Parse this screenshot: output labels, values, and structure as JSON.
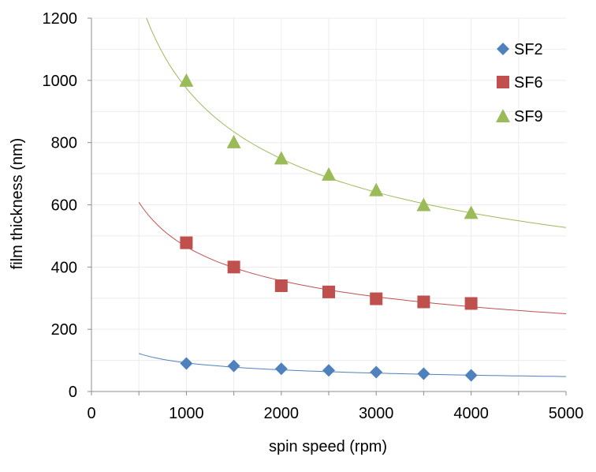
{
  "chart_data": {
    "type": "scatter",
    "title": "",
    "xlabel": "spin speed (rpm)",
    "ylabel": "film thickness (nm)",
    "xlim": [
      0,
      5000
    ],
    "ylim": [
      0,
      1200
    ],
    "x_ticks": [
      "0",
      "1000",
      "2000",
      "3000",
      "4000",
      "5000"
    ],
    "y_ticks": [
      "0",
      "200",
      "400",
      "600",
      "800",
      "1000",
      "1200"
    ],
    "grid": true,
    "legend_position": "top-right",
    "series": [
      {
        "name": "SF2",
        "marker": "diamond",
        "marker_color": "#4F81BD",
        "trend_color": "#4F81BD",
        "x": [
          1000,
          1500,
          2000,
          2500,
          3000,
          3500,
          4000
        ],
        "y": [
          90,
          82,
          73,
          68,
          62,
          57,
          52
        ],
        "trendline": {
          "from": 500,
          "to": 5000,
          "y_start": 122,
          "y_end": 48
        }
      },
      {
        "name": "SF6",
        "marker": "square",
        "marker_color": "#C0504D",
        "trend_color": "#C0504D",
        "x": [
          1000,
          1500,
          2000,
          2500,
          3000,
          3500,
          4000
        ],
        "y": [
          478,
          400,
          340,
          320,
          298,
          288,
          283
        ],
        "trendline": {
          "from": 500,
          "to": 5000,
          "y_start": 608,
          "y_end": 250
        }
      },
      {
        "name": "SF9",
        "marker": "triangle",
        "marker_color": "#9BBB59",
        "trend_color": "#9BBB59",
        "x": [
          1000,
          1500,
          2000,
          2500,
          3000,
          3500,
          4000
        ],
        "y": [
          1000,
          802,
          750,
          698,
          648,
          600,
          575
        ],
        "trendline": {
          "from": 580,
          "to": 5000,
          "y_start": 1200,
          "y_end": 527
        }
      }
    ]
  }
}
